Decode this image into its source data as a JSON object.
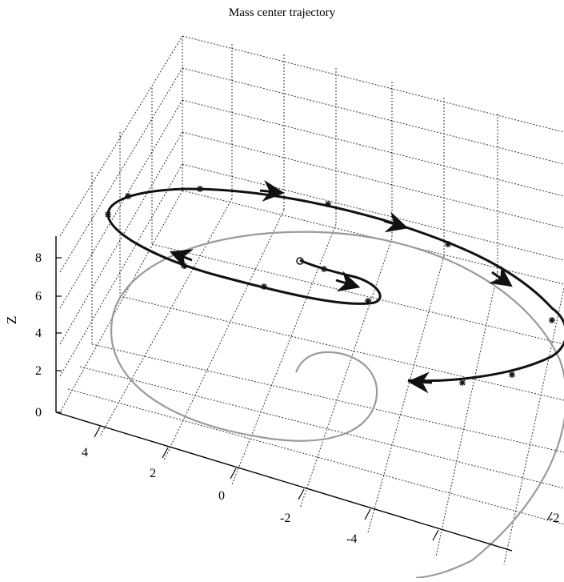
{
  "chart_data": {
    "type": "line",
    "title": "Mass center trajectory",
    "zlabel": "Z",
    "z_ticks": [
      "0",
      "2",
      "4",
      "6",
      "8"
    ],
    "x_ticks": [
      "4",
      "2",
      "0",
      "-2",
      "-4"
    ],
    "y_ticks": [
      "-2"
    ],
    "grid": true,
    "series": [
      {
        "role": "spatial-trajectory-3d",
        "color": "#111111",
        "markers": "arrow/asterisk"
      },
      {
        "role": "ground-projection",
        "color": "#9a9a9a"
      }
    ]
  }
}
